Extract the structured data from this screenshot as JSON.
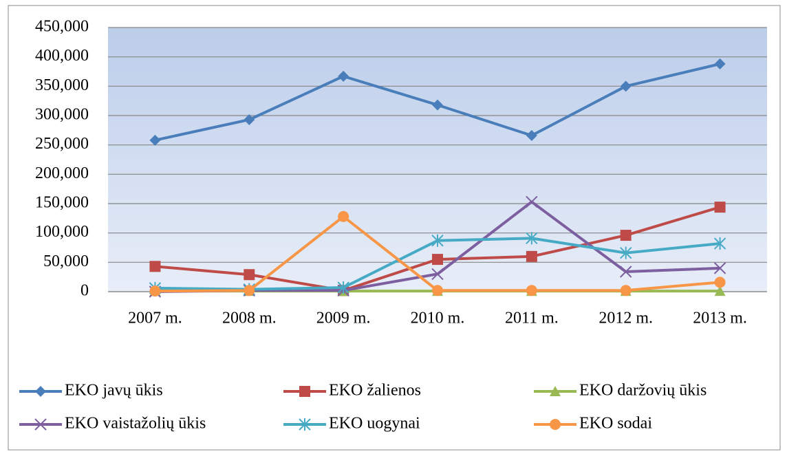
{
  "chart_data": {
    "type": "line",
    "categories": [
      "2007 m.",
      "2008 m.",
      "2009 m.",
      "2010 m.",
      "2011 m.",
      "2012 m.",
      "2013 m."
    ],
    "ylim": [
      0,
      450000
    ],
    "yticks": [
      0,
      {
        "value": 50000,
        "label": "50,000"
      },
      {
        "value": 100000,
        "label": "100,000"
      },
      {
        "value": 150000,
        "label": "150,000"
      },
      {
        "value": 200000,
        "label": "200,000"
      },
      {
        "value": 250000,
        "label": "250,000"
      },
      {
        "value": 300000,
        "label": "300,000"
      },
      {
        "value": 350000,
        "label": "350,000"
      },
      {
        "value": 400000,
        "label": "400,000"
      },
      {
        "value": 450000,
        "label": "450,000"
      }
    ],
    "grid": true,
    "series": [
      {
        "name": "EKO javų ūkis",
        "color": "#4a7ebb",
        "marker": "diamond",
        "values": [
          258000,
          293000,
          367000,
          318000,
          266000,
          350000,
          388000
        ]
      },
      {
        "name": "EKO žalienos",
        "color": "#be4b48",
        "marker": "square",
        "values": [
          43000,
          29000,
          2000,
          55000,
          60000,
          96000,
          144000
        ]
      },
      {
        "name": "EKO daržovių ūkis",
        "color": "#98b954",
        "marker": "triangle",
        "values": [
          1000,
          1000,
          1000,
          1000,
          1000,
          1000,
          1000
        ]
      },
      {
        "name": "EKO vaistažolių ūkis",
        "color": "#7d5fa0",
        "marker": "x",
        "values": [
          0,
          2000,
          2000,
          30000,
          153000,
          34000,
          40000
        ]
      },
      {
        "name": "EKO uogynai",
        "color": "#46aac5",
        "marker": "star",
        "values": [
          6000,
          4000,
          7000,
          87000,
          91000,
          66000,
          82000
        ]
      },
      {
        "name": "EKO sodai",
        "color": "#f79646",
        "marker": "circle",
        "values": [
          1000,
          2000,
          128000,
          2000,
          2000,
          2000,
          16000
        ]
      }
    ]
  }
}
